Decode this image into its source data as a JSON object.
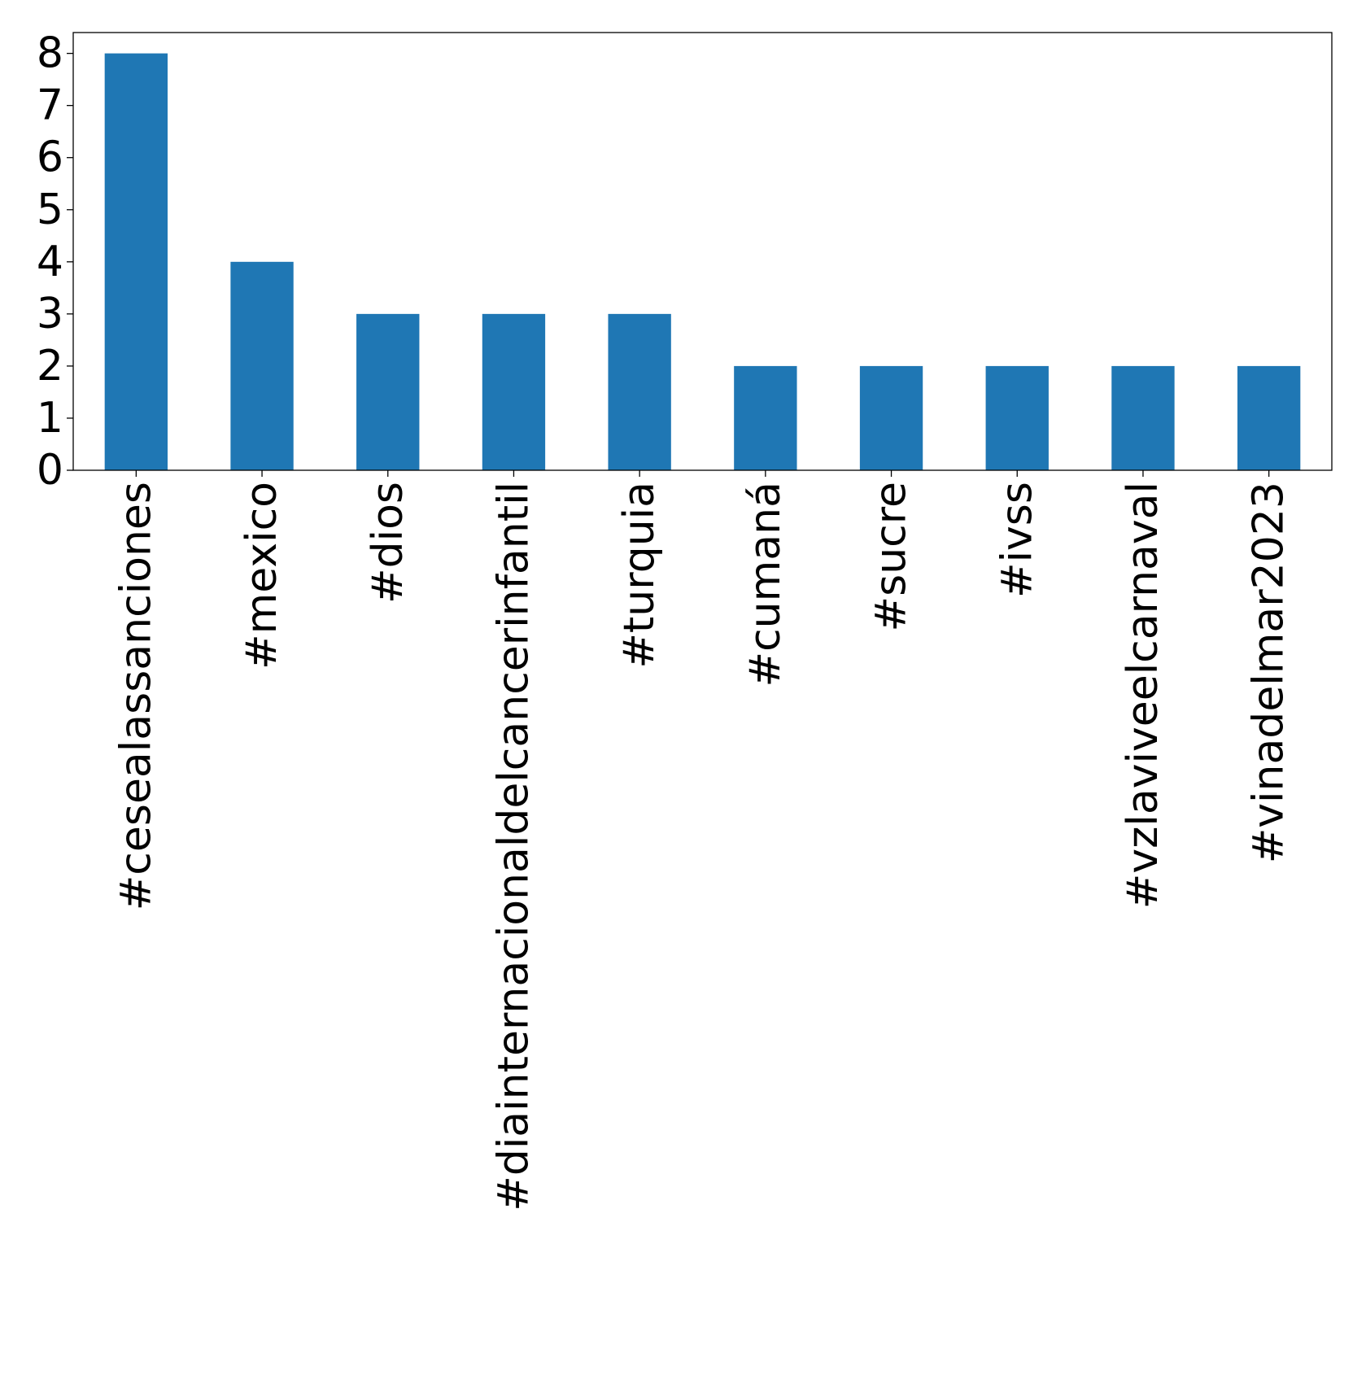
{
  "chart_data": {
    "type": "bar",
    "categories": [
      "#cesealassanciones",
      "#mexico",
      "#dios",
      "#diainternacionaldelcancerinfantil",
      "#turquia",
      "#cumaná",
      "#sucre",
      "#ivss",
      "#vzlaviveelcarnaval",
      "#vinadelmar2023"
    ],
    "values": [
      8,
      4,
      3,
      3,
      3,
      2,
      2,
      2,
      2,
      2
    ],
    "y_ticks": [
      "0",
      "1",
      "2",
      "3",
      "4",
      "5",
      "6",
      "7",
      "8"
    ],
    "ylim": [
      0,
      8.4
    ],
    "title": "",
    "xlabel": "",
    "ylabel": "",
    "grid": false,
    "legend": "none",
    "bar_color": "#1f77b4"
  }
}
